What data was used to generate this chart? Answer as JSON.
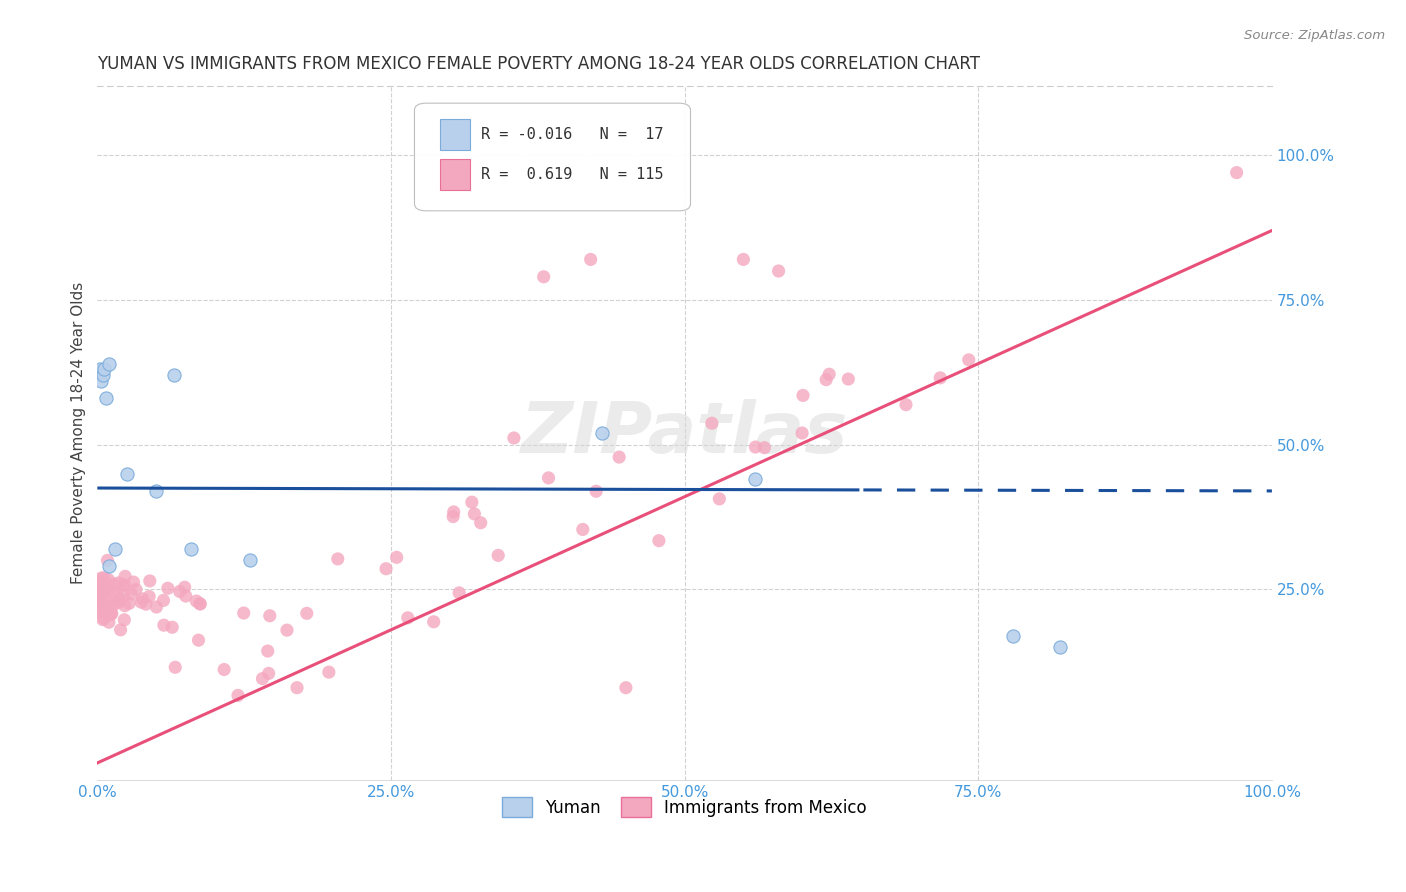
{
  "title": "YUMAN VS IMMIGRANTS FROM MEXICO FEMALE POVERTY AMONG 18-24 YEAR OLDS CORRELATION CHART",
  "source": "Source: ZipAtlas.com",
  "ylabel": "Female Poverty Among 18-24 Year Olds",
  "xlim": [
    0.0,
    1.0
  ],
  "ylim": [
    -0.08,
    1.12
  ],
  "r_yuman": -0.016,
  "n_yuman": 17,
  "r_mexico": 0.619,
  "n_mexico": 115,
  "yuman_color": "#b8d0eb",
  "yuman_edge": "#7aabdb",
  "mexico_color": "#f4a8c0",
  "mexico_edge": "#e87098",
  "yuman_line_color": "#1a4f9c",
  "mexico_line_color": "#e8507a",
  "xtick_labels": [
    "0.0%",
    "25.0%",
    "50.0%",
    "75.0%",
    "100.0%"
  ],
  "xtick_vals": [
    0.0,
    0.25,
    0.5,
    0.75,
    1.0
  ],
  "ytick_labels": [
    "25.0%",
    "50.0%",
    "75.0%",
    "100.0%"
  ],
  "ytick_vals": [
    0.25,
    0.5,
    0.75,
    1.0
  ],
  "background_color": "#ffffff",
  "grid_color": "#cccccc",
  "yuman_x": [
    0.002,
    0.003,
    0.005,
    0.006,
    0.007,
    0.01,
    0.015,
    0.025,
    0.05,
    0.065,
    0.08,
    0.13,
    0.43,
    0.56,
    0.78,
    0.82,
    0.01
  ],
  "yuman_y": [
    0.63,
    0.61,
    0.62,
    0.63,
    0.58,
    0.64,
    0.32,
    0.45,
    0.42,
    0.62,
    0.32,
    0.3,
    0.52,
    0.44,
    0.17,
    0.15,
    0.29
  ]
}
